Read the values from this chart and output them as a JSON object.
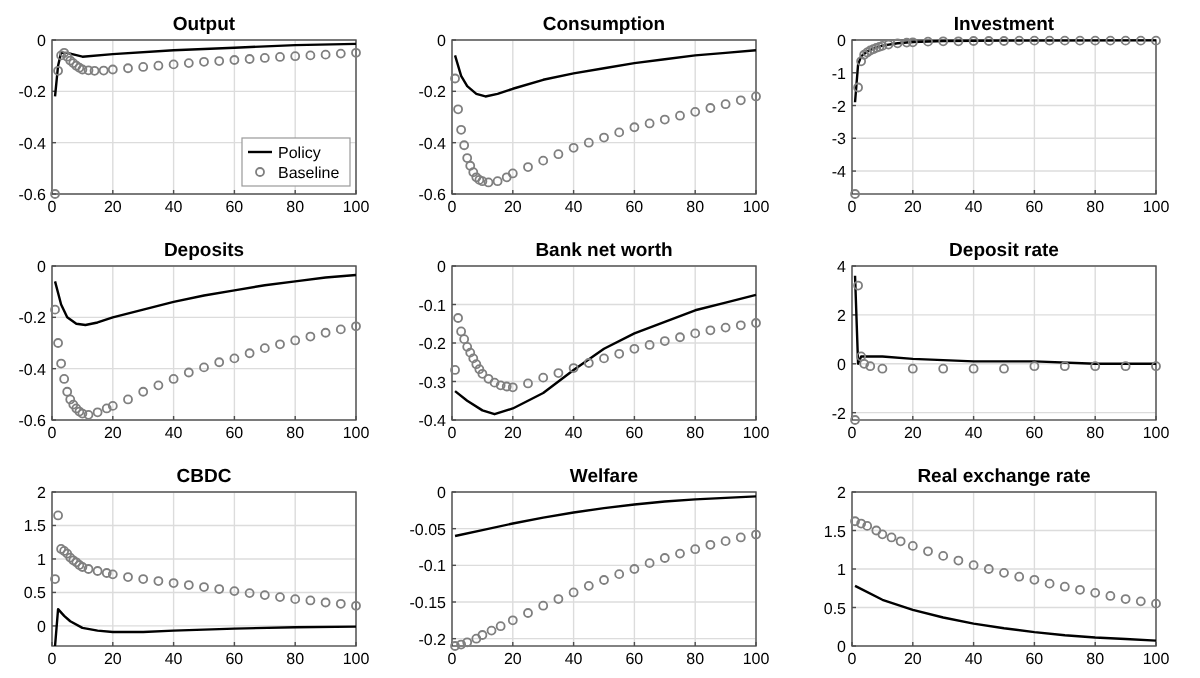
{
  "chart_data": [
    {
      "type": "line",
      "title": "Output",
      "xlim": [
        0,
        100
      ],
      "xticks": [
        0,
        20,
        40,
        60,
        80,
        100
      ],
      "ylim": [
        -0.6,
        0
      ],
      "yticks": [
        -0.6,
        -0.4,
        -0.2,
        0
      ],
      "grid": true,
      "legend": "bottom right",
      "series": [
        {
          "name": "Policy",
          "color": "#000000",
          "x": [
            1,
            2,
            3,
            5,
            10,
            20,
            40,
            60,
            80,
            100
          ],
          "values": [
            -0.22,
            -0.1,
            -0.05,
            -0.05,
            -0.065,
            -0.055,
            -0.04,
            -0.03,
            -0.02,
            -0.015
          ]
        },
        {
          "name": "Baseline",
          "type": "scatter",
          "marker": "circle",
          "color": "#7f7f7f",
          "x": [
            1,
            2,
            3,
            4,
            5,
            6,
            7,
            8,
            9,
            10,
            12,
            14,
            17,
            20,
            25,
            30,
            35,
            40,
            45,
            50,
            55,
            60,
            65,
            70,
            75,
            80,
            85,
            90,
            95,
            100
          ],
          "values": [
            -0.6,
            -0.12,
            -0.06,
            -0.05,
            -0.065,
            -0.08,
            -0.09,
            -0.1,
            -0.108,
            -0.115,
            -0.118,
            -0.12,
            -0.119,
            -0.115,
            -0.11,
            -0.105,
            -0.1,
            -0.095,
            -0.09,
            -0.085,
            -0.082,
            -0.078,
            -0.074,
            -0.07,
            -0.066,
            -0.063,
            -0.06,
            -0.057,
            -0.053,
            -0.05
          ]
        }
      ]
    },
    {
      "type": "line",
      "title": "Consumption",
      "xlim": [
        0,
        100
      ],
      "xticks": [
        0,
        20,
        40,
        60,
        80,
        100
      ],
      "ylim": [
        -0.6,
        0
      ],
      "yticks": [
        -0.6,
        -0.4,
        -0.2,
        0
      ],
      "grid": true,
      "series": [
        {
          "color": "#000000",
          "x": [
            1,
            3,
            5,
            8,
            11,
            15,
            20,
            30,
            40,
            50,
            60,
            70,
            80,
            90,
            100
          ],
          "values": [
            -0.06,
            -0.14,
            -0.18,
            -0.21,
            -0.22,
            -0.21,
            -0.19,
            -0.155,
            -0.13,
            -0.11,
            -0.09,
            -0.075,
            -0.06,
            -0.05,
            -0.04
          ]
        },
        {
          "type": "scatter",
          "marker": "circle",
          "color": "#7f7f7f",
          "x": [
            1,
            2,
            3,
            4,
            5,
            6,
            7,
            8,
            9,
            10,
            12,
            15,
            18,
            20,
            25,
            30,
            35,
            40,
            45,
            50,
            55,
            60,
            65,
            70,
            75,
            80,
            85,
            90,
            95,
            100
          ],
          "values": [
            -0.15,
            -0.27,
            -0.35,
            -0.41,
            -0.46,
            -0.49,
            -0.515,
            -0.535,
            -0.545,
            -0.55,
            -0.555,
            -0.55,
            -0.535,
            -0.52,
            -0.495,
            -0.47,
            -0.445,
            -0.42,
            -0.4,
            -0.38,
            -0.36,
            -0.34,
            -0.325,
            -0.31,
            -0.295,
            -0.28,
            -0.265,
            -0.25,
            -0.235,
            -0.22
          ]
        }
      ]
    },
    {
      "type": "line",
      "title": "Investment",
      "xlim": [
        0,
        100
      ],
      "xticks": [
        0,
        20,
        40,
        60,
        80,
        100
      ],
      "ylim": [
        -4.7,
        0
      ],
      "yticks": [
        -4,
        -3,
        -2,
        -1,
        0
      ],
      "grid": true,
      "series": [
        {
          "color": "#000000",
          "x": [
            1,
            2,
            3,
            5,
            8,
            10,
            15,
            20,
            30,
            50,
            100
          ],
          "values": [
            -1.9,
            -0.75,
            -0.5,
            -0.35,
            -0.22,
            -0.17,
            -0.1,
            -0.06,
            -0.03,
            -0.02,
            -0.01
          ]
        },
        {
          "type": "scatter",
          "marker": "circle",
          "color": "#7f7f7f",
          "x": [
            1,
            2,
            3,
            4,
            5,
            6,
            7,
            8,
            9,
            10,
            12,
            15,
            18,
            20,
            25,
            30,
            35,
            40,
            45,
            50,
            55,
            60,
            65,
            70,
            75,
            80,
            85,
            90,
            95,
            100
          ],
          "values": [
            -4.7,
            -1.45,
            -0.65,
            -0.45,
            -0.38,
            -0.32,
            -0.28,
            -0.24,
            -0.21,
            -0.18,
            -0.14,
            -0.1,
            -0.08,
            -0.07,
            -0.05,
            -0.04,
            -0.04,
            -0.03,
            -0.03,
            -0.03,
            -0.02,
            -0.02,
            -0.02,
            -0.02,
            -0.02,
            -0.02,
            -0.02,
            -0.02,
            -0.02,
            -0.02
          ]
        }
      ]
    },
    {
      "type": "line",
      "title": "Deposits",
      "xlim": [
        0,
        100
      ],
      "xticks": [
        0,
        20,
        40,
        60,
        80,
        100
      ],
      "ylim": [
        -0.6,
        0
      ],
      "yticks": [
        -0.6,
        -0.4,
        -0.2,
        0
      ],
      "grid": true,
      "series": [
        {
          "color": "#000000",
          "x": [
            1,
            3,
            5,
            8,
            11,
            15,
            20,
            30,
            40,
            50,
            60,
            70,
            80,
            90,
            100
          ],
          "values": [
            -0.06,
            -0.15,
            -0.2,
            -0.225,
            -0.23,
            -0.22,
            -0.2,
            -0.17,
            -0.14,
            -0.115,
            -0.095,
            -0.075,
            -0.06,
            -0.045,
            -0.035
          ]
        },
        {
          "type": "scatter",
          "marker": "circle",
          "color": "#7f7f7f",
          "x": [
            1,
            2,
            3,
            4,
            5,
            6,
            7,
            8,
            9,
            10,
            12,
            15,
            18,
            20,
            25,
            30,
            35,
            40,
            45,
            50,
            55,
            60,
            65,
            70,
            75,
            80,
            85,
            90,
            95,
            100
          ],
          "values": [
            -0.17,
            -0.3,
            -0.38,
            -0.44,
            -0.49,
            -0.52,
            -0.54,
            -0.555,
            -0.567,
            -0.575,
            -0.58,
            -0.57,
            -0.555,
            -0.545,
            -0.52,
            -0.49,
            -0.465,
            -0.44,
            -0.415,
            -0.395,
            -0.375,
            -0.36,
            -0.34,
            -0.32,
            -0.305,
            -0.29,
            -0.275,
            -0.26,
            -0.247,
            -0.235
          ]
        }
      ]
    },
    {
      "type": "line",
      "title": "Bank net worth",
      "xlim": [
        0,
        100
      ],
      "xticks": [
        0,
        20,
        40,
        60,
        80,
        100
      ],
      "ylim": [
        -0.4,
        0
      ],
      "yticks": [
        -0.4,
        -0.3,
        -0.2,
        -0.1,
        0
      ],
      "grid": true,
      "series": [
        {
          "color": "#000000",
          "x": [
            1,
            5,
            10,
            14,
            20,
            30,
            40,
            50,
            60,
            70,
            80,
            90,
            100
          ],
          "values": [
            -0.325,
            -0.35,
            -0.375,
            -0.385,
            -0.37,
            -0.33,
            -0.27,
            -0.215,
            -0.175,
            -0.145,
            -0.115,
            -0.095,
            -0.075
          ]
        },
        {
          "type": "scatter",
          "marker": "circle",
          "color": "#7f7f7f",
          "x": [
            1,
            2,
            3,
            4,
            5,
            6,
            7,
            8,
            9,
            10,
            12,
            14,
            16,
            18,
            20,
            25,
            30,
            35,
            40,
            45,
            50,
            55,
            60,
            65,
            70,
            75,
            80,
            85,
            90,
            95,
            100
          ],
          "values": [
            -0.27,
            -0.135,
            -0.17,
            -0.19,
            -0.21,
            -0.225,
            -0.24,
            -0.255,
            -0.268,
            -0.28,
            -0.293,
            -0.303,
            -0.31,
            -0.313,
            -0.315,
            -0.305,
            -0.29,
            -0.278,
            -0.265,
            -0.252,
            -0.24,
            -0.228,
            -0.215,
            -0.205,
            -0.195,
            -0.185,
            -0.175,
            -0.167,
            -0.16,
            -0.154,
            -0.148
          ]
        }
      ]
    },
    {
      "type": "line",
      "title": "Deposit rate",
      "xlim": [
        0,
        100
      ],
      "xticks": [
        0,
        20,
        40,
        60,
        80,
        100
      ],
      "ylim": [
        -2.3,
        4
      ],
      "yticks": [
        -2,
        0,
        2,
        4
      ],
      "grid": true,
      "series": [
        {
          "color": "#000000",
          "x": [
            1,
            2,
            3,
            10,
            20,
            40,
            60,
            80,
            100
          ],
          "values": [
            3.6,
            0,
            0.3,
            0.3,
            0.2,
            0.1,
            0.1,
            0,
            0
          ]
        },
        {
          "type": "scatter",
          "marker": "circle",
          "color": "#7f7f7f",
          "x": [
            1,
            2,
            3,
            4,
            6,
            10,
            20,
            30,
            40,
            50,
            60,
            70,
            80,
            90,
            100
          ],
          "values": [
            -2.3,
            3.2,
            0.3,
            0,
            -0.1,
            -0.2,
            -0.2,
            -0.2,
            -0.2,
            -0.2,
            -0.1,
            -0.1,
            -0.1,
            -0.1,
            -0.1
          ]
        }
      ]
    },
    {
      "type": "line",
      "title": "CBDC",
      "xlim": [
        0,
        100
      ],
      "xticks": [
        0,
        20,
        40,
        60,
        80,
        100
      ],
      "ylim": [
        -0.3,
        2
      ],
      "yticks": [
        0,
        0.5,
        1,
        1.5,
        2
      ],
      "grid": true,
      "series": [
        {
          "color": "#000000",
          "x": [
            1,
            2,
            4,
            6,
            10,
            15,
            20,
            30,
            40,
            60,
            80,
            100
          ],
          "values": [
            -0.3,
            0.25,
            0.15,
            0.07,
            -0.03,
            -0.07,
            -0.09,
            -0.09,
            -0.07,
            -0.04,
            -0.02,
            -0.01
          ]
        },
        {
          "type": "scatter",
          "marker": "circle",
          "color": "#7f7f7f",
          "x": [
            1,
            2,
            3,
            4,
            5,
            6,
            7,
            8,
            9,
            10,
            12,
            15,
            18,
            20,
            25,
            30,
            35,
            40,
            45,
            50,
            55,
            60,
            65,
            70,
            75,
            80,
            85,
            90,
            95,
            100
          ],
          "values": [
            0.7,
            1.65,
            1.15,
            1.12,
            1.08,
            1.02,
            0.98,
            0.95,
            0.91,
            0.88,
            0.85,
            0.82,
            0.79,
            0.77,
            0.73,
            0.7,
            0.67,
            0.64,
            0.61,
            0.58,
            0.55,
            0.52,
            0.49,
            0.46,
            0.43,
            0.4,
            0.38,
            0.35,
            0.33,
            0.3
          ]
        }
      ]
    },
    {
      "type": "line",
      "title": "Welfare",
      "xlim": [
        0,
        100
      ],
      "xticks": [
        0,
        20,
        40,
        60,
        80,
        100
      ],
      "ylim": [
        -0.21,
        0
      ],
      "yticks": [
        -0.2,
        -0.15,
        -0.1,
        -0.05,
        0
      ],
      "grid": true,
      "series": [
        {
          "color": "#000000",
          "x": [
            1,
            10,
            20,
            30,
            40,
            50,
            60,
            70,
            80,
            90,
            100
          ],
          "values": [
            -0.06,
            -0.052,
            -0.043,
            -0.035,
            -0.028,
            -0.022,
            -0.017,
            -0.013,
            -0.01,
            -0.008,
            -0.006
          ]
        },
        {
          "type": "scatter",
          "marker": "circle",
          "color": "#7f7f7f",
          "x": [
            1,
            3,
            5,
            8,
            10,
            13,
            16,
            20,
            25,
            30,
            35,
            40,
            45,
            50,
            55,
            60,
            65,
            70,
            75,
            80,
            85,
            90,
            95,
            100
          ],
          "values": [
            -0.21,
            -0.208,
            -0.205,
            -0.2,
            -0.195,
            -0.189,
            -0.183,
            -0.175,
            -0.165,
            -0.155,
            -0.146,
            -0.137,
            -0.128,
            -0.12,
            -0.112,
            -0.105,
            -0.097,
            -0.09,
            -0.084,
            -0.078,
            -0.072,
            -0.067,
            -0.062,
            -0.058
          ]
        }
      ]
    },
    {
      "type": "line",
      "title": "Real exchange rate",
      "xlim": [
        0,
        100
      ],
      "xticks": [
        0,
        20,
        40,
        60,
        80,
        100
      ],
      "ylim": [
        0,
        2
      ],
      "yticks": [
        0,
        0.5,
        1,
        1.5,
        2
      ],
      "grid": true,
      "series": [
        {
          "color": "#000000",
          "x": [
            1,
            10,
            20,
            30,
            40,
            50,
            60,
            70,
            80,
            90,
            100
          ],
          "values": [
            0.78,
            0.6,
            0.47,
            0.37,
            0.29,
            0.23,
            0.18,
            0.14,
            0.11,
            0.09,
            0.07
          ]
        },
        {
          "type": "scatter",
          "marker": "circle",
          "color": "#7f7f7f",
          "x": [
            1,
            3,
            5,
            8,
            10,
            13,
            16,
            20,
            25,
            30,
            35,
            40,
            45,
            50,
            55,
            60,
            65,
            70,
            75,
            80,
            85,
            90,
            95,
            100
          ],
          "values": [
            1.62,
            1.59,
            1.56,
            1.5,
            1.45,
            1.41,
            1.36,
            1.3,
            1.23,
            1.17,
            1.11,
            1.05,
            1,
            0.95,
            0.9,
            0.86,
            0.81,
            0.77,
            0.73,
            0.69,
            0.65,
            0.61,
            0.58,
            0.55
          ]
        }
      ]
    }
  ]
}
